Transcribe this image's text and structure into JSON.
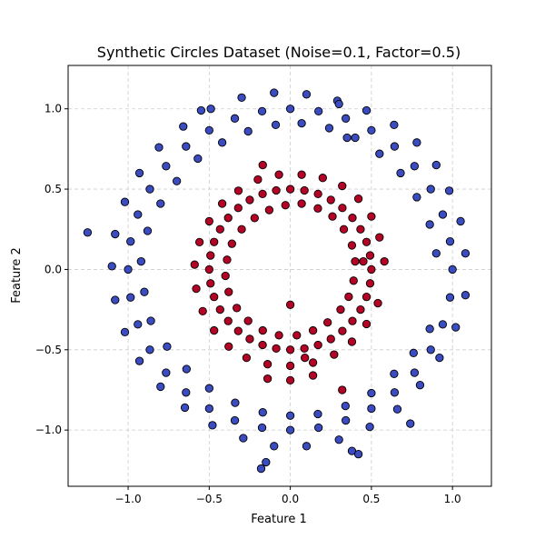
{
  "chart_data": {
    "type": "scatter",
    "title": "Synthetic Circles Dataset (Noise=0.1, Factor=0.5)",
    "xlabel": "Feature 1",
    "ylabel": "Feature 2",
    "xlim": [
      -1.37,
      1.24
    ],
    "ylim": [
      -1.35,
      1.27
    ],
    "x_ticks": [
      -1.0,
      -0.5,
      0.0,
      0.5,
      1.0
    ],
    "x_tick_labels": [
      "−1.0",
      "−0.5",
      "0.0",
      "0.5",
      "1.0"
    ],
    "y_ticks": [
      -1.0,
      -0.5,
      0.0,
      0.5,
      1.0
    ],
    "y_tick_labels": [
      "−1.0",
      "−0.5",
      "0.0",
      "0.5",
      "1.0"
    ],
    "grid": true,
    "grid_style": "dashed",
    "legend": "none",
    "series": [
      {
        "color": "#3b4cc0",
        "x": [
          1.0,
          0.985,
          0.94,
          0.866,
          0.766,
          0.643,
          0.5,
          0.342,
          0.174,
          0.0,
          -0.174,
          -0.342,
          -0.5,
          -0.643,
          -0.766,
          -0.866,
          -0.94,
          -0.985,
          -1.0,
          -0.985,
          -0.94,
          -0.866,
          -0.766,
          -0.643,
          -0.5,
          -0.342,
          -0.174,
          0.0,
          0.174,
          0.342,
          0.5,
          0.643,
          0.766,
          0.866,
          0.94,
          0.985,
          1.08,
          1.05,
          0.98,
          0.9,
          0.78,
          0.64,
          0.47,
          0.29,
          0.1,
          -0.1,
          -0.3,
          -0.49,
          -0.66,
          -0.81,
          -0.93,
          -1.02,
          -1.08,
          -1.1,
          -1.08,
          -1.02,
          -0.93,
          -0.8,
          -0.65,
          -0.48,
          -0.29,
          -0.1,
          0.1,
          0.3,
          0.49,
          0.66,
          0.8,
          0.92,
          1.02,
          1.08,
          0.9,
          0.86,
          0.78,
          0.68,
          0.55,
          0.4,
          0.24,
          0.07,
          -0.09,
          -0.26,
          -0.42,
          -0.57,
          -0.7,
          -0.8,
          -0.88,
          -0.92,
          -0.9,
          -0.86,
          -0.76,
          -0.64,
          -0.5,
          -0.34,
          -0.17,
          0.0,
          0.17,
          0.34,
          0.5,
          0.64,
          0.76,
          0.86,
          -1.25,
          -0.18,
          -0.15,
          0.38,
          0.42,
          0.74,
          0.3,
          0.35,
          -0.55
        ],
        "y": [
          0.0,
          0.174,
          0.342,
          0.5,
          0.643,
          0.766,
          0.866,
          0.94,
          0.985,
          1.0,
          0.985,
          0.94,
          0.866,
          0.766,
          0.643,
          0.5,
          0.342,
          0.174,
          0.0,
          -0.174,
          -0.342,
          -0.5,
          -0.643,
          -0.766,
          -0.866,
          -0.94,
          -0.985,
          -1.0,
          -0.985,
          -0.94,
          -0.866,
          -0.766,
          -0.643,
          -0.5,
          -0.342,
          -0.174,
          0.1,
          0.3,
          0.49,
          0.65,
          0.79,
          0.9,
          0.99,
          1.05,
          1.09,
          1.1,
          1.07,
          1.0,
          0.89,
          0.76,
          0.6,
          0.42,
          0.22,
          0.02,
          -0.19,
          -0.39,
          -0.57,
          -0.73,
          -0.86,
          -0.97,
          -1.05,
          -1.1,
          -1.1,
          -1.06,
          -0.98,
          -0.87,
          -0.72,
          -0.55,
          -0.36,
          -0.16,
          0.1,
          0.28,
          0.45,
          0.6,
          0.72,
          0.82,
          0.88,
          0.91,
          0.9,
          0.86,
          0.79,
          0.69,
          0.55,
          0.41,
          0.24,
          0.05,
          -0.14,
          -0.32,
          -0.48,
          -0.62,
          -0.74,
          -0.83,
          -0.89,
          -0.91,
          -0.9,
          -0.85,
          -0.77,
          -0.65,
          -0.52,
          -0.37,
          0.23,
          -1.24,
          -1.2,
          -1.13,
          -1.15,
          -0.96,
          1.03,
          0.82,
          0.99
        ]
      },
      {
        "color": "#b40426",
        "x": [
          0.5,
          0.492,
          0.47,
          0.433,
          0.383,
          0.321,
          0.25,
          0.171,
          0.087,
          0.0,
          -0.087,
          -0.171,
          -0.25,
          -0.321,
          -0.383,
          -0.433,
          -0.47,
          -0.492,
          -0.5,
          -0.492,
          -0.47,
          -0.433,
          -0.383,
          -0.321,
          -0.25,
          -0.171,
          -0.087,
          0.0,
          0.087,
          0.171,
          0.25,
          0.321,
          0.383,
          0.433,
          0.47,
          0.492,
          0.58,
          0.55,
          0.5,
          0.42,
          0.32,
          0.2,
          0.07,
          -0.07,
          -0.2,
          -0.32,
          -0.42,
          -0.5,
          -0.56,
          -0.59,
          -0.58,
          -0.54,
          -0.47,
          -0.38,
          -0.27,
          -0.14,
          0.0,
          0.14,
          0.27,
          0.38,
          0.47,
          0.54,
          0.4,
          0.38,
          0.33,
          0.26,
          0.17,
          0.07,
          -0.03,
          -0.13,
          -0.22,
          -0.3,
          -0.36,
          -0.39,
          -0.4,
          -0.38,
          -0.33,
          -0.26,
          -0.17,
          -0.07,
          0.04,
          0.14,
          0.23,
          0.31,
          0.36,
          0.39,
          0.45,
          -0.17,
          -0.14,
          0.0,
          0.0,
          0.14,
          0.32,
          0.09
        ],
        "y": [
          0.0,
          0.087,
          0.171,
          0.25,
          0.321,
          0.383,
          0.433,
          0.47,
          0.492,
          0.5,
          0.492,
          0.47,
          0.433,
          0.383,
          0.321,
          0.25,
          0.171,
          0.087,
          0.0,
          -0.087,
          -0.171,
          -0.25,
          -0.321,
          -0.383,
          -0.433,
          -0.47,
          -0.492,
          -0.5,
          -0.492,
          -0.47,
          -0.433,
          -0.383,
          -0.321,
          -0.25,
          -0.171,
          -0.087,
          0.05,
          0.2,
          0.33,
          0.44,
          0.52,
          0.57,
          0.59,
          0.59,
          0.56,
          0.49,
          0.41,
          0.3,
          0.17,
          0.03,
          -0.12,
          -0.26,
          -0.38,
          -0.48,
          -0.55,
          -0.59,
          -0.6,
          -0.58,
          -0.53,
          -0.45,
          -0.34,
          -0.21,
          0.05,
          0.15,
          0.25,
          0.33,
          0.38,
          0.41,
          0.4,
          0.37,
          0.32,
          0.25,
          0.16,
          0.06,
          -0.04,
          -0.14,
          -0.24,
          -0.32,
          -0.38,
          -0.41,
          -0.41,
          -0.38,
          -0.33,
          -0.25,
          -0.17,
          -0.07,
          0.05,
          0.65,
          -0.68,
          -0.22,
          -0.69,
          -0.66,
          -0.75,
          -0.55
        ]
      }
    ]
  }
}
